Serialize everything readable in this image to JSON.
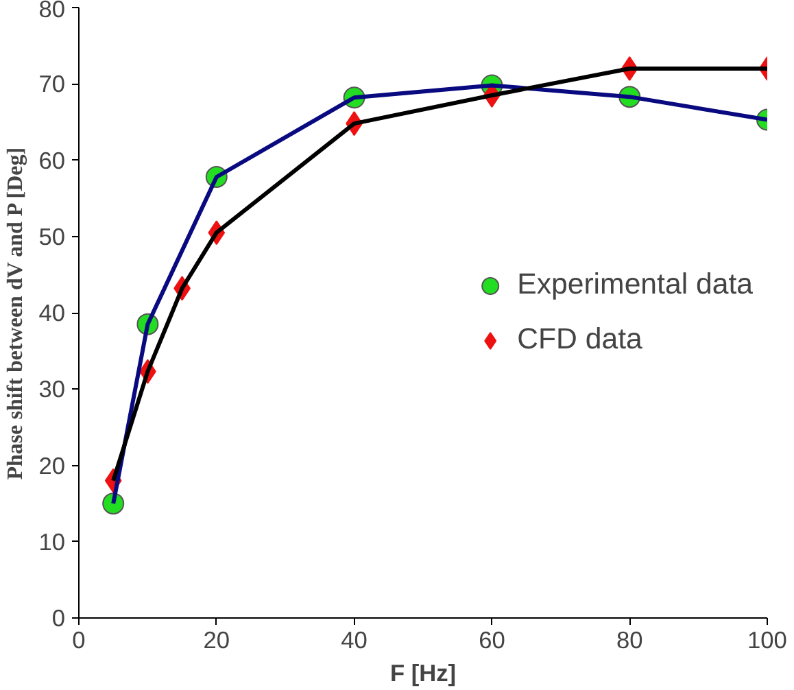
{
  "chart_data": {
    "type": "line",
    "xlabel": "F [Hz]",
    "ylabel": "Phase shift between dV and P [Deg]",
    "xlim": [
      0,
      100
    ],
    "xticks": [
      0,
      20,
      40,
      60,
      80,
      100
    ],
    "ylim": [
      0,
      80
    ],
    "yticks": [
      0,
      10,
      20,
      30,
      40,
      50,
      60,
      70,
      80
    ],
    "grid": false,
    "legend": "right",
    "series": [
      {
        "type": "scatter",
        "name": "Experimental data",
        "color": "#22dd22",
        "x": [
          5,
          10,
          20,
          40,
          60,
          80,
          100
        ],
        "values": [
          15,
          38.5,
          57.8,
          68.2,
          69.8,
          68.3,
          65.3
        ],
        "marker": "circle"
      },
      {
        "type": "scatter",
        "name": "CFD data",
        "color": "#ee1111",
        "x": [
          5,
          10,
          15,
          20,
          40,
          60,
          80,
          100
        ],
        "values": [
          18,
          32.3,
          43.2,
          50.5,
          64.8,
          68.5,
          72,
          72
        ],
        "marker": "diamond"
      },
      {
        "color": "#0a0a80",
        "x": [
          5,
          10,
          20,
          40,
          60,
          80,
          100
        ],
        "values": [
          15,
          38.5,
          57.8,
          68.2,
          69.8,
          68.3,
          65.3
        ],
        "marker": "none"
      },
      {
        "color": "#000000",
        "x": [
          5,
          10,
          15,
          20,
          40,
          60,
          80,
          100
        ],
        "values": [
          18,
          32.3,
          43.2,
          50.5,
          64.8,
          68.5,
          72,
          72
        ],
        "marker": "none"
      }
    ]
  }
}
